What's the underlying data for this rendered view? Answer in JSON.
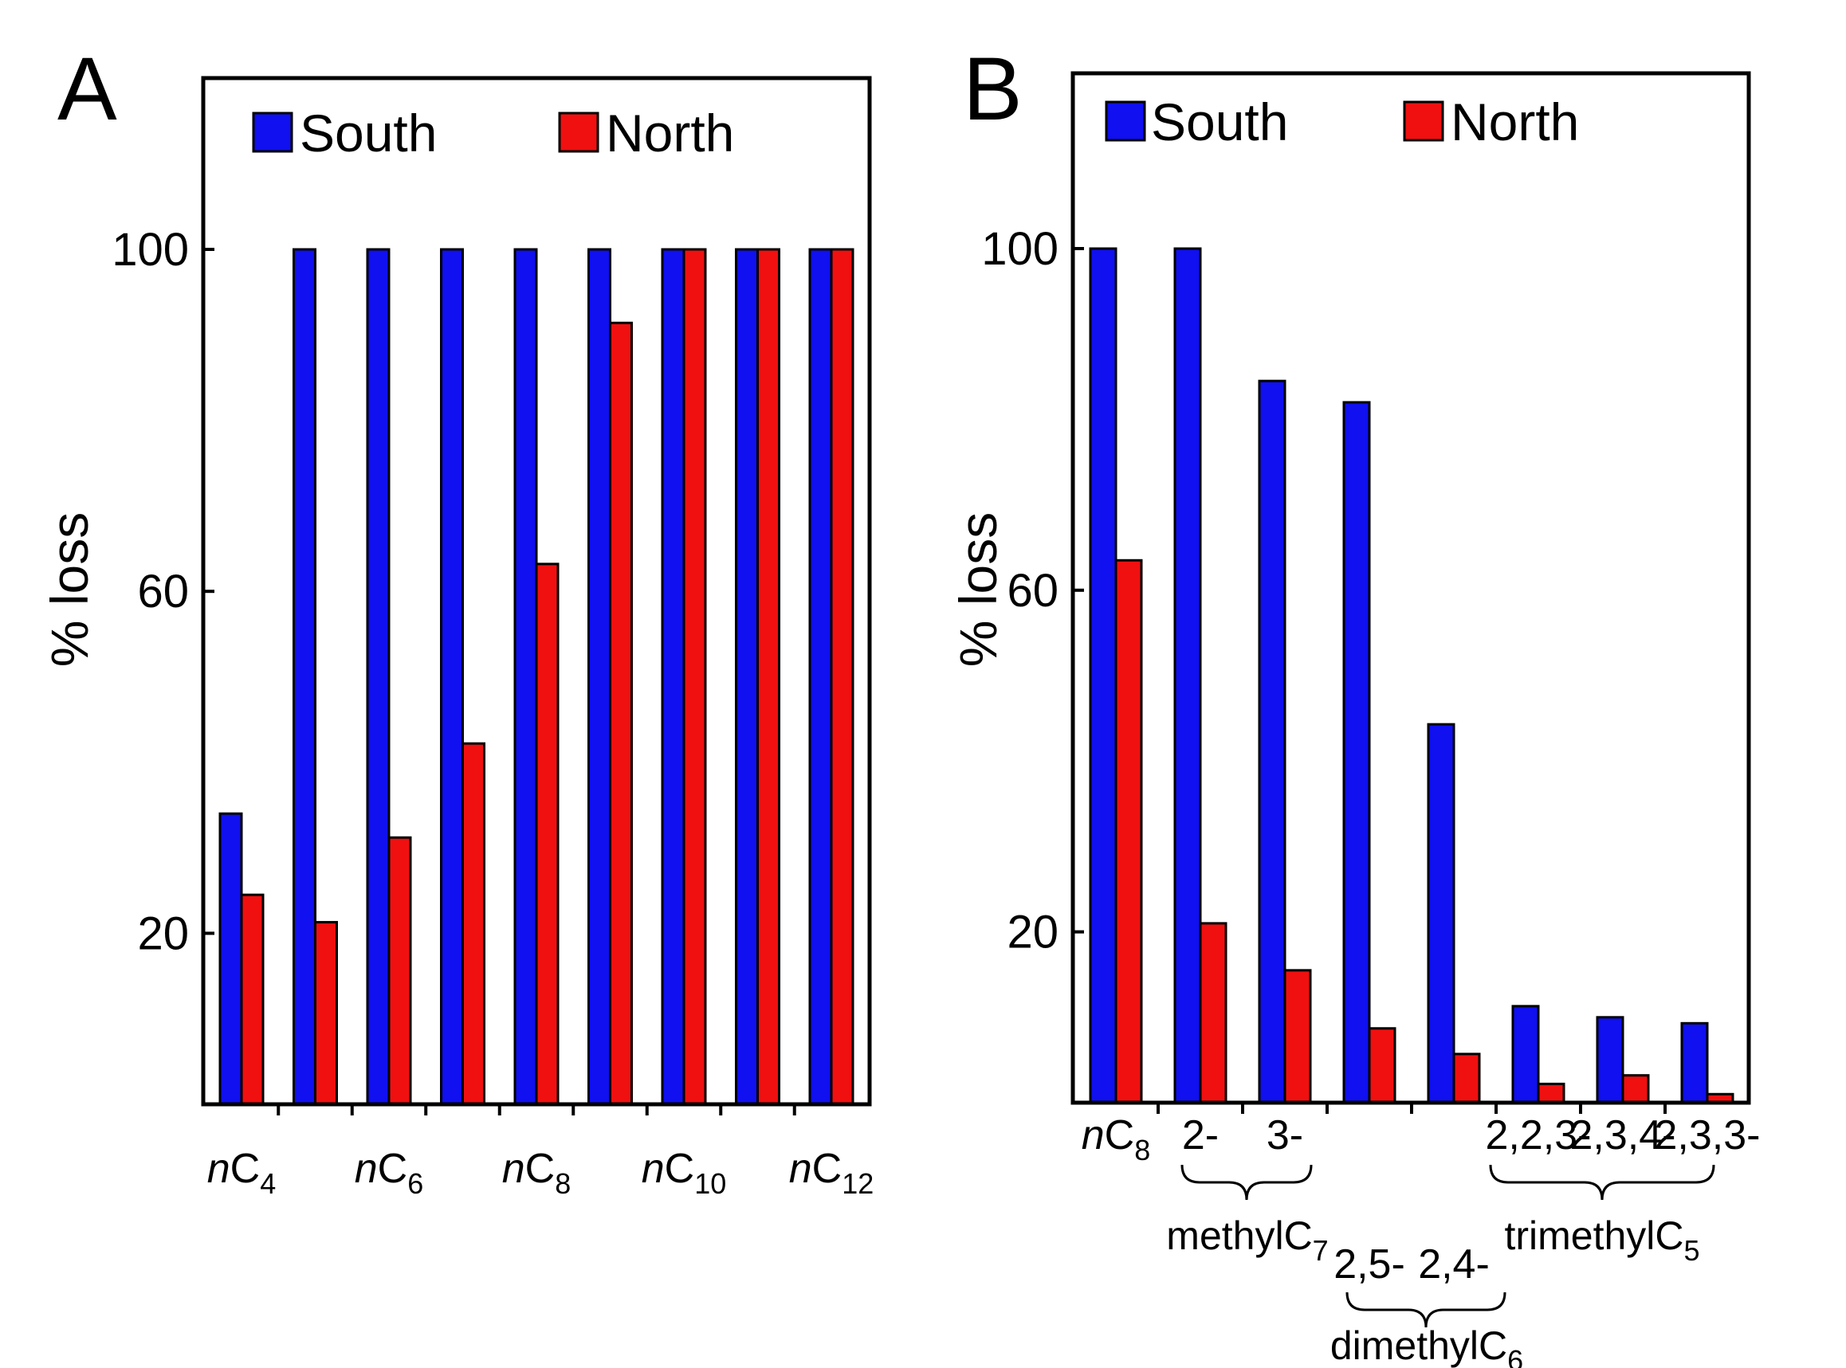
{
  "colors": {
    "south": "#1010f0",
    "north": "#f01010"
  },
  "chart_data": [
    {
      "panel": "A",
      "type": "bar",
      "ylabel": "% loss",
      "yticks": [
        20,
        60,
        100
      ],
      "ylim": [
        0,
        120
      ],
      "legend": [
        "South",
        "North"
      ],
      "grid": false,
      "legend_position": "top",
      "series": [
        {
          "name": "South",
          "values": [
            34,
            100,
            100,
            100,
            100,
            100,
            100,
            100,
            100
          ]
        },
        {
          "name": "North",
          "values": [
            24.5,
            21.3,
            31.2,
            42.2,
            63.2,
            91.4,
            100,
            100,
            100
          ]
        }
      ],
      "tick_labels": [
        {
          "i": "n",
          "base": "C",
          "sub": "4",
          "at": 0
        },
        {
          "i": "n",
          "base": "C",
          "sub": "6",
          "at": 2
        },
        {
          "i": "n",
          "base": "C",
          "sub": "8",
          "at": 4
        },
        {
          "i": "n",
          "base": "C",
          "sub": "10",
          "at": 6
        },
        {
          "i": "n",
          "base": "C",
          "sub": "12",
          "at": 8
        }
      ]
    },
    {
      "panel": "B",
      "type": "bar",
      "ylabel": "% loss",
      "yticks": [
        20,
        60,
        100
      ],
      "ylim": [
        0,
        120
      ],
      "legend": [
        "South",
        "North"
      ],
      "grid": false,
      "legend_position": "top",
      "series": [
        {
          "name": "South",
          "values": [
            100,
            100,
            84.5,
            82,
            44.3,
            11.3,
            10,
            9.3
          ]
        },
        {
          "name": "North",
          "values": [
            63.5,
            21,
            15.5,
            8.7,
            5.7,
            2.2,
            3.2,
            1
          ]
        }
      ],
      "category_labels": [
        {
          "i": "n",
          "base": "C",
          "sub": "8"
        },
        {
          "base": "2-"
        },
        {
          "base": "3-"
        },
        {
          "base": "2,5-"
        },
        {
          "base": "2,4-"
        },
        {
          "base": "2,2,3-"
        },
        {
          "base": "2,3,4-"
        },
        {
          "base": "2,3,3-"
        }
      ],
      "groups": [
        {
          "label": "methylC",
          "sub": "7"
        },
        {
          "label": "dimethylC",
          "sub": "6"
        },
        {
          "label": "trimethylC",
          "sub": "5"
        }
      ]
    }
  ]
}
